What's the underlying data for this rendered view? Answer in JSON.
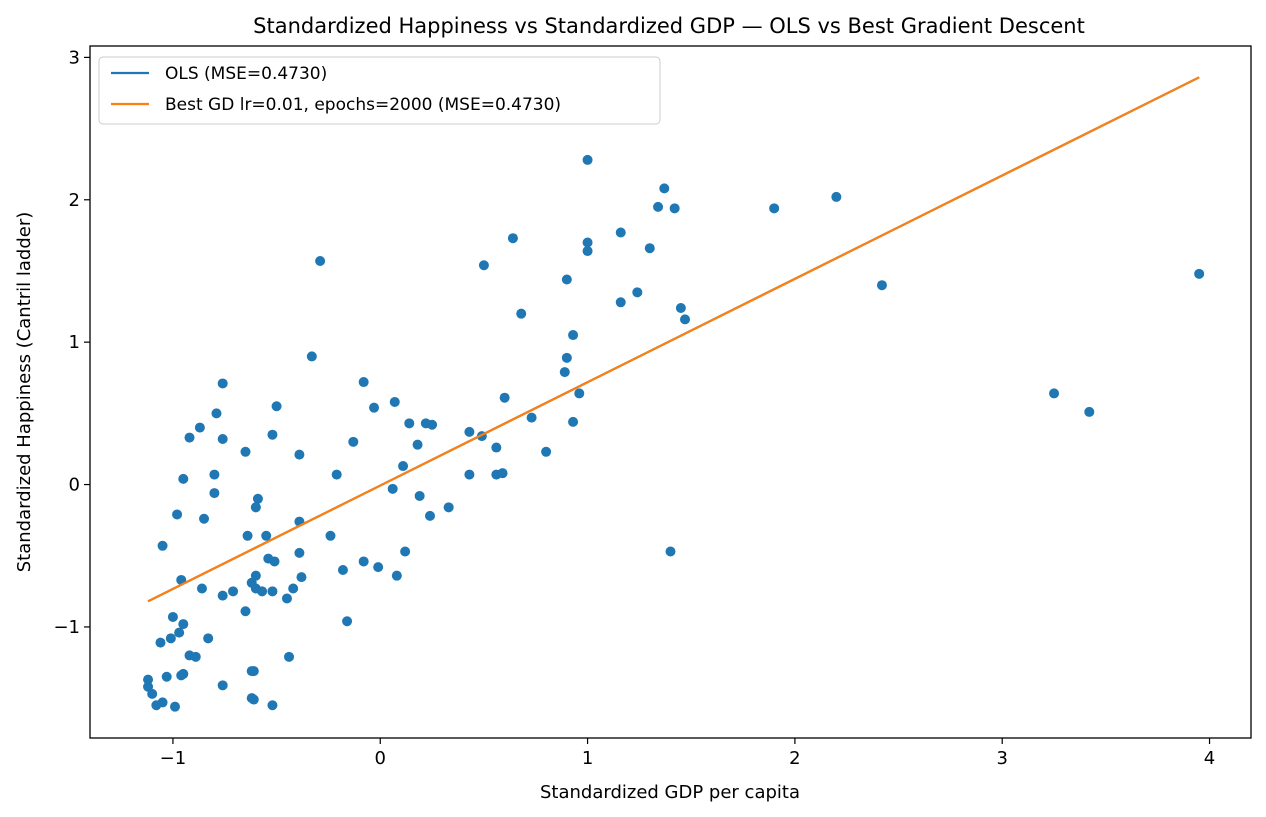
{
  "chart_data": {
    "type": "scatter",
    "title": "Standardized Happiness vs Standardized GDP — OLS vs Best Gradient Descent",
    "xlabel": "Standardized GDP per capita",
    "ylabel": "Standardized Happiness (Cantril ladder)",
    "xlim": [
      -1.4,
      4.2
    ],
    "ylim": [
      -1.78,
      3.08
    ],
    "xticks": [
      -1,
      0,
      1,
      2,
      3,
      4
    ],
    "yticks": [
      -1,
      0,
      1,
      2,
      3
    ],
    "xtick_labels": [
      "−1",
      "0",
      "1",
      "2",
      "3",
      "4"
    ],
    "ytick_labels": [
      "−1",
      "0",
      "1",
      "2",
      "3"
    ],
    "grid": false,
    "legend_position": "top-left",
    "colors": {
      "points": "#1f77b4",
      "ols": "#1f77b4",
      "gd": "#ff7f0e"
    },
    "series": [
      {
        "type": "line",
        "name": "OLS (MSE=0.4730)",
        "x": [
          -1.12,
          3.95
        ],
        "y": [
          -0.82,
          2.86
        ]
      },
      {
        "type": "line",
        "name": "Best GD lr=0.01, epochs=2000 (MSE=0.4730)",
        "x": [
          -1.12,
          3.95
        ],
        "y": [
          -0.82,
          2.86
        ]
      },
      {
        "type": "scatter",
        "points": [
          [
            1.0,
            2.28
          ],
          [
            1.37,
            2.08
          ],
          [
            2.2,
            2.02
          ],
          [
            1.34,
            1.95
          ],
          [
            1.42,
            1.94
          ],
          [
            1.9,
            1.94
          ],
          [
            1.16,
            1.77
          ],
          [
            0.64,
            1.73
          ],
          [
            1.0,
            1.7
          ],
          [
            1.3,
            1.66
          ],
          [
            1.0,
            1.64
          ],
          [
            -0.29,
            1.57
          ],
          [
            0.5,
            1.54
          ],
          [
            3.95,
            1.48
          ],
          [
            0.9,
            1.44
          ],
          [
            2.42,
            1.4
          ],
          [
            1.24,
            1.35
          ],
          [
            1.16,
            1.28
          ],
          [
            1.45,
            1.24
          ],
          [
            0.68,
            1.2
          ],
          [
            1.47,
            1.16
          ],
          [
            0.93,
            1.05
          ],
          [
            -0.33,
            0.9
          ],
          [
            0.9,
            0.89
          ],
          [
            0.89,
            0.79
          ],
          [
            -0.76,
            0.71
          ],
          [
            -0.08,
            0.72
          ],
          [
            3.25,
            0.64
          ],
          [
            0.96,
            0.64
          ],
          [
            0.6,
            0.61
          ],
          [
            0.07,
            0.58
          ],
          [
            -0.5,
            0.55
          ],
          [
            -0.03,
            0.54
          ],
          [
            -0.79,
            0.5
          ],
          [
            3.42,
            0.51
          ],
          [
            0.73,
            0.47
          ],
          [
            0.93,
            0.44
          ],
          [
            0.14,
            0.43
          ],
          [
            0.22,
            0.43
          ],
          [
            0.25,
            0.42
          ],
          [
            -0.87,
            0.4
          ],
          [
            0.43,
            0.37
          ],
          [
            0.49,
            0.34
          ],
          [
            -0.52,
            0.35
          ],
          [
            -0.92,
            0.33
          ],
          [
            -0.76,
            0.32
          ],
          [
            -0.13,
            0.3
          ],
          [
            0.18,
            0.28
          ],
          [
            0.56,
            0.26
          ],
          [
            -0.65,
            0.23
          ],
          [
            -0.39,
            0.21
          ],
          [
            0.8,
            0.23
          ],
          [
            0.11,
            0.13
          ],
          [
            -0.21,
            0.07
          ],
          [
            -0.8,
            0.07
          ],
          [
            0.43,
            0.07
          ],
          [
            0.56,
            0.07
          ],
          [
            0.59,
            0.08
          ],
          [
            -0.95,
            0.04
          ],
          [
            0.06,
            -0.03
          ],
          [
            -0.8,
            -0.06
          ],
          [
            0.19,
            -0.08
          ],
          [
            -0.59,
            -0.1
          ],
          [
            0.33,
            -0.16
          ],
          [
            -0.6,
            -0.16
          ],
          [
            -0.98,
            -0.21
          ],
          [
            0.24,
            -0.22
          ],
          [
            -0.85,
            -0.24
          ],
          [
            -0.39,
            -0.26
          ],
          [
            -0.55,
            -0.36
          ],
          [
            -0.64,
            -0.36
          ],
          [
            -0.24,
            -0.36
          ],
          [
            -1.05,
            -0.43
          ],
          [
            -0.39,
            -0.48
          ],
          [
            0.12,
            -0.47
          ],
          [
            1.4,
            -0.47
          ],
          [
            -0.54,
            -0.52
          ],
          [
            -0.51,
            -0.54
          ],
          [
            -0.08,
            -0.54
          ],
          [
            -0.01,
            -0.58
          ],
          [
            -0.18,
            -0.6
          ],
          [
            -0.38,
            -0.65
          ],
          [
            -0.6,
            -0.64
          ],
          [
            0.08,
            -0.64
          ],
          [
            -0.96,
            -0.67
          ],
          [
            -0.62,
            -0.69
          ],
          [
            -0.6,
            -0.73
          ],
          [
            -0.86,
            -0.73
          ],
          [
            -0.57,
            -0.75
          ],
          [
            -0.42,
            -0.73
          ],
          [
            -0.71,
            -0.75
          ],
          [
            -0.52,
            -0.75
          ],
          [
            -0.76,
            -0.78
          ],
          [
            -0.45,
            -0.8
          ],
          [
            -0.65,
            -0.89
          ],
          [
            -1.0,
            -0.93
          ],
          [
            -0.16,
            -0.96
          ],
          [
            -0.95,
            -0.98
          ],
          [
            -0.97,
            -1.04
          ],
          [
            -1.01,
            -1.08
          ],
          [
            -0.83,
            -1.08
          ],
          [
            -1.06,
            -1.11
          ],
          [
            -0.92,
            -1.2
          ],
          [
            -0.89,
            -1.21
          ],
          [
            -0.44,
            -1.21
          ],
          [
            -0.61,
            -1.31
          ],
          [
            -0.62,
            -1.31
          ],
          [
            -0.95,
            -1.33
          ],
          [
            -0.96,
            -1.34
          ],
          [
            -1.03,
            -1.35
          ],
          [
            -1.12,
            -1.37
          ],
          [
            -0.76,
            -1.41
          ],
          [
            -1.12,
            -1.42
          ],
          [
            -1.1,
            -1.47
          ],
          [
            -0.62,
            -1.5
          ],
          [
            -0.61,
            -1.51
          ],
          [
            -1.05,
            -1.53
          ],
          [
            -1.08,
            -1.55
          ],
          [
            -0.52,
            -1.55
          ],
          [
            -0.99,
            -1.56
          ]
        ]
      }
    ]
  }
}
